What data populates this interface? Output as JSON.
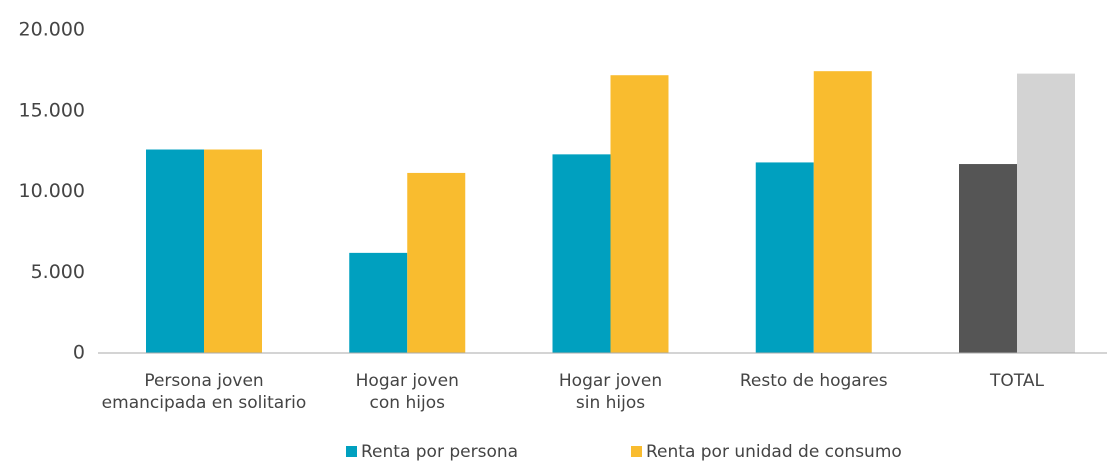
{
  "chart_data": {
    "type": "bar",
    "categories": [
      [
        "Persona joven",
        "emancipada en solitario"
      ],
      [
        "Hogar joven",
        "con hijos"
      ],
      [
        "Hogar joven",
        "sin hijos"
      ],
      [
        "Resto de hogares"
      ],
      [
        "TOTAL"
      ]
    ],
    "series": [
      {
        "name": "Renta por persona",
        "color": "#00a0bf",
        "colors": [
          "#00a0bf",
          "#00a0bf",
          "#00a0bf",
          "#00a0bf",
          "#555555"
        ],
        "values": [
          12600,
          6200,
          12300,
          11800,
          11700
        ]
      },
      {
        "name": "Renta por unidad de consumo",
        "color": "#f9bc2f",
        "colors": [
          "#f9bc2f",
          "#f9bc2f",
          "#f9bc2f",
          "#f9bc2f",
          "#d3d3d3"
        ],
        "values": [
          12600,
          11150,
          17200,
          17450,
          17300
        ]
      }
    ],
    "ylim": [
      0,
      20000
    ],
    "yticks": [
      0,
      {
        "value": 5000,
        "label": "5.000"
      },
      {
        "value": 10000,
        "label": "10.000"
      },
      {
        "value": 15000,
        "label": "15.000"
      },
      {
        "value": 20000,
        "label": "20.000"
      }
    ],
    "grid": false
  }
}
